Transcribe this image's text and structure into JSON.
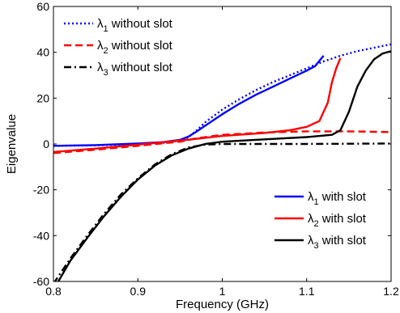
{
  "chart_data": {
    "type": "line",
    "title": "",
    "xlabel": "Frequency (GHz)",
    "ylabel": "Eigenvalue",
    "xlim": [
      0.8,
      1.2
    ],
    "ylim": [
      -60,
      60
    ],
    "xticks": [
      "0.8",
      "0.9",
      "1",
      "1.1",
      "1.2"
    ],
    "yticks": [
      "-60",
      "-40",
      "-20",
      "0",
      "20",
      "40",
      "60"
    ],
    "grid": false,
    "legends": [
      {
        "placement": "top-left",
        "entries": [
          0,
          1,
          2
        ]
      },
      {
        "placement": "bottom-right",
        "entries": [
          3,
          4,
          5
        ]
      }
    ],
    "series": [
      {
        "name": "λ1 without slot",
        "symbol": "λ",
        "subscript": "1",
        "text": " without slot",
        "color": "#0000ff",
        "style": "dotted",
        "points": [
          [
            0.8,
            -0.8
          ],
          [
            0.85,
            -0.6
          ],
          [
            0.9,
            0.0
          ],
          [
            0.93,
            0.5
          ],
          [
            0.95,
            1.5
          ],
          [
            0.96,
            3.0
          ],
          [
            0.97,
            6.0
          ],
          [
            0.98,
            9.5
          ],
          [
            1.0,
            15.0
          ],
          [
            1.02,
            19.5
          ],
          [
            1.04,
            23.5
          ],
          [
            1.06,
            27.0
          ],
          [
            1.08,
            30.0
          ],
          [
            1.1,
            33.0
          ],
          [
            1.12,
            36.0
          ],
          [
            1.14,
            38.5
          ],
          [
            1.16,
            40.5
          ],
          [
            1.18,
            42.0
          ],
          [
            1.2,
            43.5
          ]
        ]
      },
      {
        "name": "λ2 without slot",
        "symbol": "λ",
        "subscript": "2",
        "text": " without slot",
        "color": "#ff0000",
        "style": "dashed",
        "points": [
          [
            0.8,
            -4.0
          ],
          [
            0.85,
            -2.5
          ],
          [
            0.9,
            -0.8
          ],
          [
            0.95,
            1.0
          ],
          [
            0.97,
            2.5
          ],
          [
            1.0,
            4.0
          ],
          [
            1.05,
            5.0
          ],
          [
            1.1,
            5.5
          ],
          [
            1.15,
            5.5
          ],
          [
            1.2,
            5.2
          ]
        ]
      },
      {
        "name": "λ3 without slot",
        "symbol": "λ",
        "subscript": "3",
        "text": " without slot",
        "color": "#000000",
        "style": "dashdot",
        "points": [
          [
            0.8,
            -61.0
          ],
          [
            0.82,
            -50.0
          ],
          [
            0.84,
            -40.0
          ],
          [
            0.86,
            -30.5
          ],
          [
            0.88,
            -22.0
          ],
          [
            0.9,
            -15.0
          ],
          [
            0.92,
            -9.0
          ],
          [
            0.94,
            -4.5
          ],
          [
            0.96,
            -1.5
          ],
          [
            0.98,
            -0.3
          ],
          [
            1.0,
            0.0
          ],
          [
            1.1,
            0.0
          ],
          [
            1.2,
            0.2
          ]
        ]
      },
      {
        "name": "λ1 with slot",
        "symbol": "λ",
        "subscript": "1",
        "text": " with slot",
        "color": "#0000ff",
        "style": "solid",
        "points": [
          [
            0.8,
            -0.8
          ],
          [
            0.85,
            -0.5
          ],
          [
            0.9,
            0.2
          ],
          [
            0.93,
            0.8
          ],
          [
            0.95,
            1.8
          ],
          [
            0.96,
            3.2
          ],
          [
            0.97,
            5.5
          ],
          [
            0.98,
            8.0
          ],
          [
            1.0,
            13.0
          ],
          [
            1.02,
            17.5
          ],
          [
            1.04,
            21.5
          ],
          [
            1.06,
            25.0
          ],
          [
            1.08,
            28.5
          ],
          [
            1.1,
            32.0
          ],
          [
            1.11,
            34.0
          ],
          [
            1.12,
            38.5
          ]
        ]
      },
      {
        "name": "λ2 with slot",
        "symbol": "λ",
        "subscript": "2",
        "text": " with slot",
        "color": "#ff0000",
        "style": "solid",
        "points": [
          [
            0.8,
            -3.5
          ],
          [
            0.85,
            -2.0
          ],
          [
            0.9,
            -0.3
          ],
          [
            0.95,
            1.5
          ],
          [
            1.0,
            3.5
          ],
          [
            1.05,
            4.8
          ],
          [
            1.08,
            6.0
          ],
          [
            1.1,
            7.5
          ],
          [
            1.115,
            10.0
          ],
          [
            1.125,
            18.0
          ],
          [
            1.13,
            27.0
          ],
          [
            1.135,
            33.0
          ],
          [
            1.14,
            37.5
          ]
        ]
      },
      {
        "name": "λ3 with slot",
        "symbol": "λ",
        "subscript": "3",
        "text": " with slot",
        "color": "#000000",
        "style": "solid",
        "points": [
          [
            0.805,
            -60.5
          ],
          [
            0.82,
            -51.0
          ],
          [
            0.84,
            -41.0
          ],
          [
            0.86,
            -31.5
          ],
          [
            0.88,
            -23.0
          ],
          [
            0.9,
            -15.5
          ],
          [
            0.92,
            -9.5
          ],
          [
            0.94,
            -5.0
          ],
          [
            0.96,
            -2.0
          ],
          [
            0.98,
            0.0
          ],
          [
            1.0,
            1.0
          ],
          [
            1.05,
            2.0
          ],
          [
            1.1,
            3.0
          ],
          [
            1.13,
            4.0
          ],
          [
            1.14,
            6.0
          ],
          [
            1.15,
            14.0
          ],
          [
            1.16,
            25.0
          ],
          [
            1.17,
            32.0
          ],
          [
            1.18,
            37.0
          ],
          [
            1.19,
            39.5
          ],
          [
            1.2,
            40.5
          ]
        ]
      }
    ]
  }
}
